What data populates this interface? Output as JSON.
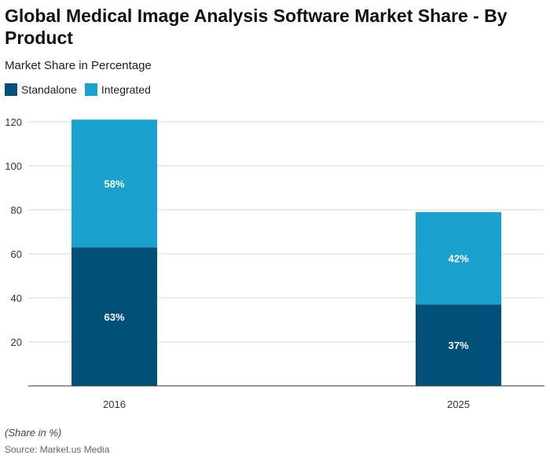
{
  "colors": {
    "Standalone": "#00507a",
    "Integrated": "#1aa1cf"
  },
  "chart_data": {
    "type": "bar",
    "stacked": true,
    "title": "Global Medical Image Analysis Software Market Share - By Product",
    "subtitle": "Market Share in Percentage",
    "categories": [
      "2016",
      "2025"
    ],
    "series": [
      {
        "name": "Standalone",
        "values": [
          63,
          37
        ],
        "labels": [
          "63%",
          "37%"
        ]
      },
      {
        "name": "Integrated",
        "values": [
          58,
          42
        ],
        "labels": [
          "58%",
          "42%"
        ]
      }
    ],
    "ylim": [
      0,
      125
    ],
    "yticks": [
      20,
      40,
      60,
      80,
      100,
      120
    ],
    "grid": true,
    "legend": "top-left",
    "note": "(Share in %)",
    "source": "Source: Market.us Media"
  }
}
